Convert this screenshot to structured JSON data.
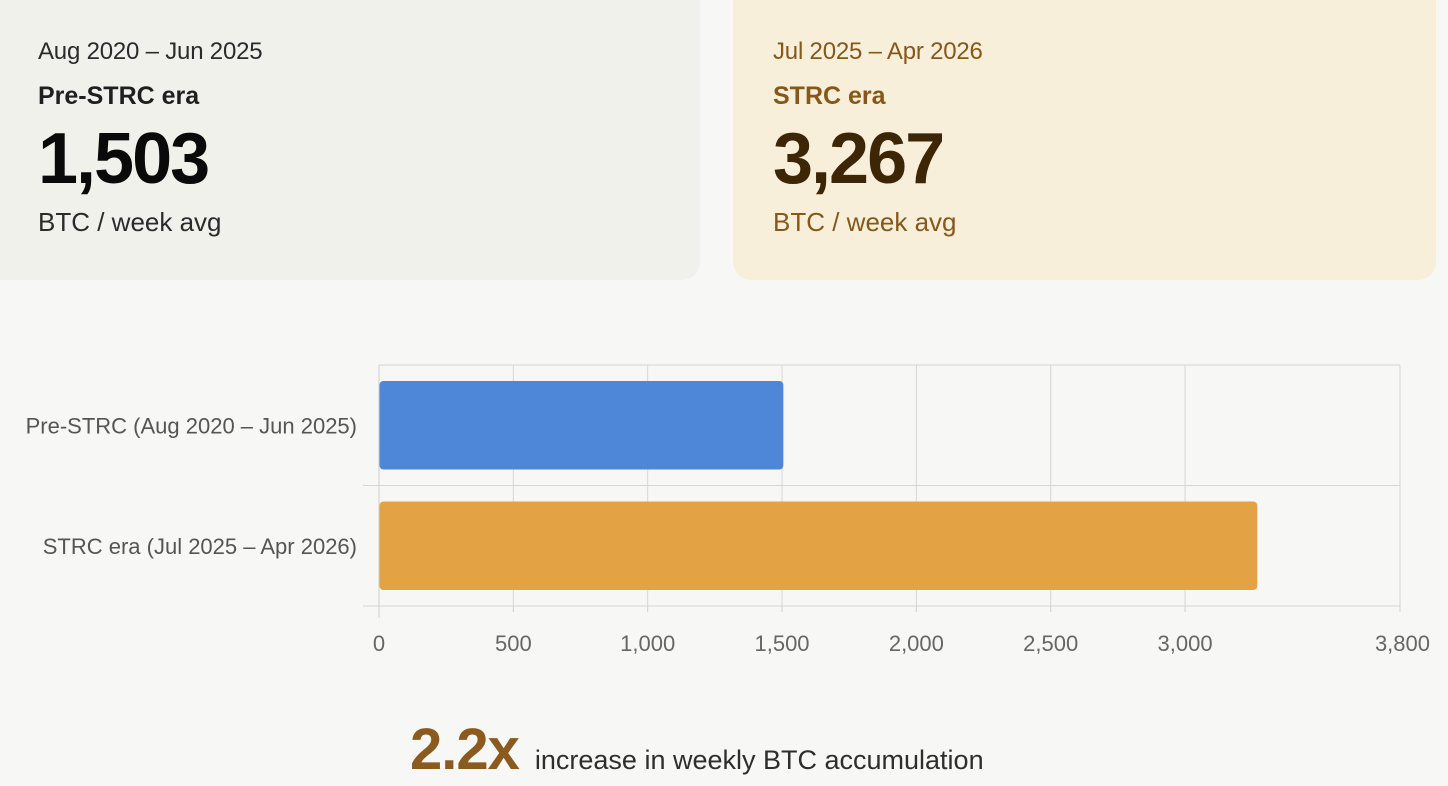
{
  "cards": {
    "pre": {
      "period": "Aug 2020 – Jun 2025",
      "era": "Pre-STRC era",
      "value": "1,503",
      "unit": "BTC / week avg"
    },
    "strc": {
      "period": "Jul 2025 – Apr 2026",
      "era": "STRC era",
      "value": "3,267",
      "unit": "BTC / week avg"
    }
  },
  "chart_data": {
    "type": "bar",
    "orientation": "horizontal",
    "categories": [
      "Pre-STRC (Aug 2020 – Jun 2025)",
      "STRC era (Jul 2025 – Apr 2026)"
    ],
    "values": [
      1503,
      3267
    ],
    "colors": [
      "#4f87d8",
      "#e3a345"
    ],
    "xlim": [
      0,
      3800
    ],
    "xticks": [
      0,
      500,
      1000,
      1500,
      2000,
      2500,
      3000,
      3800
    ],
    "xtick_labels": [
      "0",
      "500",
      "1,000",
      "1,500",
      "2,000",
      "2,500",
      "3,000",
      "3,800"
    ],
    "grid": true,
    "legend": "none"
  },
  "footer": {
    "multiplier": "2.2x",
    "text": "increase in weekly BTC accumulation"
  },
  "colors": {
    "background": "#f7f7f5",
    "pre_card": "#f1f1ec",
    "strc_card": "#f8efdb",
    "accent_brown": "#855719",
    "pre_bar": "#4f87d8",
    "strc_bar": "#e3a345"
  }
}
